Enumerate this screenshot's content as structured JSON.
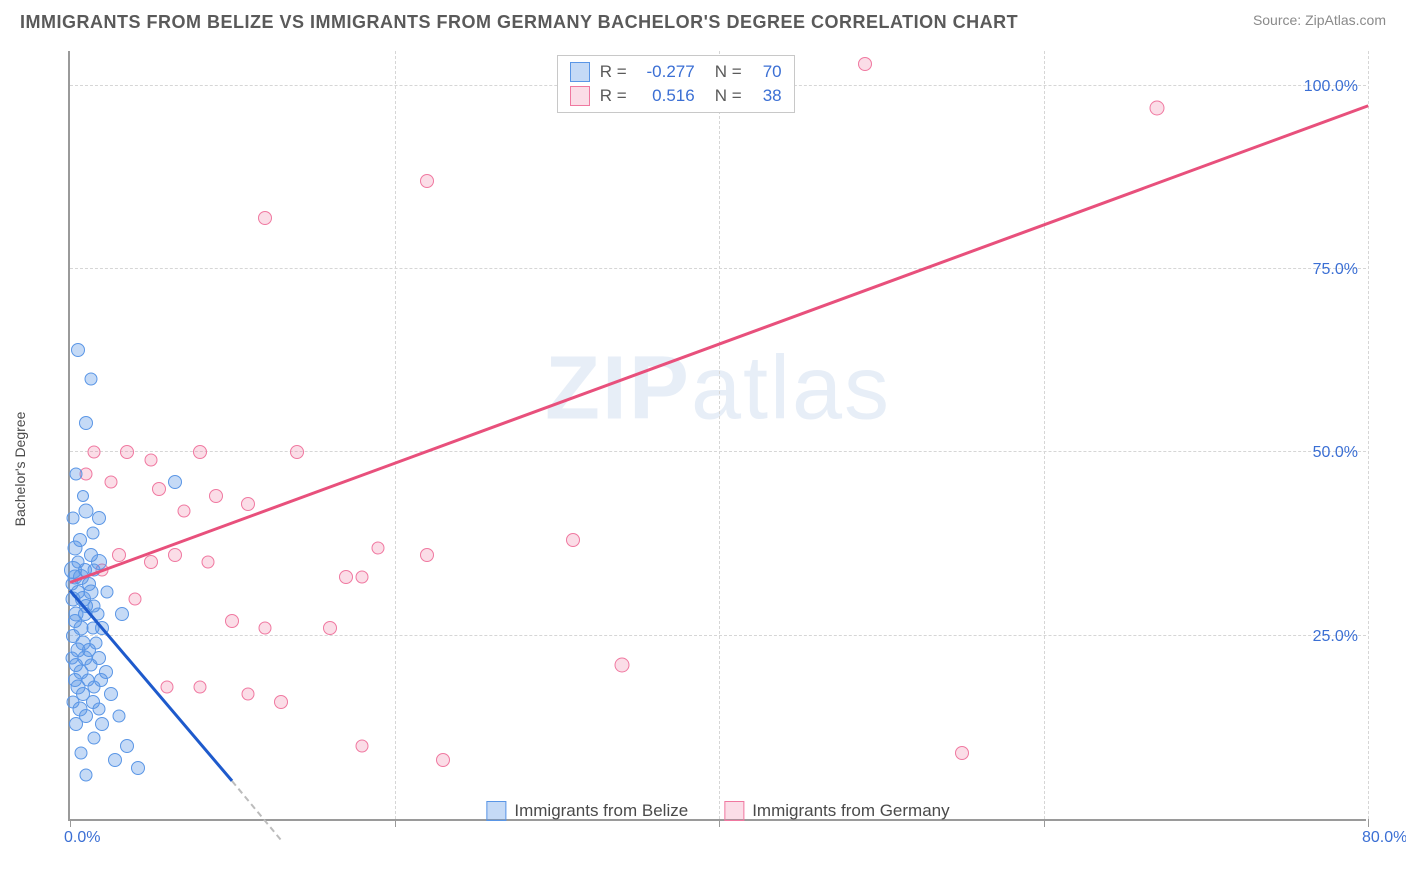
{
  "title": "IMMIGRANTS FROM BELIZE VS IMMIGRANTS FROM GERMANY BACHELOR'S DEGREE CORRELATION CHART",
  "source": "Source: ZipAtlas.com",
  "ylabel": "Bachelor's Degree",
  "watermark_a": "ZIP",
  "watermark_b": "atlas",
  "chart": {
    "type": "scatter",
    "xlim": [
      0,
      80
    ],
    "ylim": [
      0,
      105
    ],
    "xticks": [
      0,
      20,
      40,
      60,
      80
    ],
    "xticklabels": [
      "0.0%",
      "",
      "",
      "",
      "80.0%"
    ],
    "yticks": [
      25,
      50,
      75,
      100
    ],
    "yticklabels": [
      "25.0%",
      "50.0%",
      "75.0%",
      "100.0%"
    ],
    "grid_color": "#d6d6d6",
    "axis_color": "#9a9a9a",
    "text_color": "#3b6fd4",
    "background": "#ffffff",
    "marker_size_min": 10,
    "marker_size_max": 20
  },
  "legend_top": {
    "r_label": "R =",
    "n_label": "N =",
    "rows": [
      {
        "swatch": "b",
        "r": "-0.277",
        "n": "70"
      },
      {
        "swatch": "p",
        "r": "0.516",
        "n": "38"
      }
    ]
  },
  "legend_bottom": [
    {
      "swatch": "b",
      "label": "Immigrants from Belize"
    },
    {
      "swatch": "p",
      "label": "Immigrants from Germany"
    }
  ],
  "trend_lines": {
    "blue": {
      "x1": 0,
      "y1": 31,
      "x2": 10,
      "y2": 5,
      "color": "#1e5acc"
    },
    "blue_dash": {
      "x1": 10,
      "y1": 5,
      "x2": 13,
      "y2": -3
    },
    "pink": {
      "x1": 0,
      "y1": 32,
      "x2": 80,
      "y2": 97,
      "color": "#e8507c"
    }
  },
  "series": {
    "belize": {
      "color_fill": "rgba(90,150,230,0.35)",
      "color_stroke": "#5a96e6",
      "points": [
        {
          "x": 0.5,
          "y": 64,
          "s": 14
        },
        {
          "x": 1.3,
          "y": 60,
          "s": 13
        },
        {
          "x": 1.0,
          "y": 54,
          "s": 14
        },
        {
          "x": 0.4,
          "y": 47,
          "s": 13
        },
        {
          "x": 6.5,
          "y": 46,
          "s": 14
        },
        {
          "x": 0.8,
          "y": 44,
          "s": 12
        },
        {
          "x": 1.0,
          "y": 42,
          "s": 15
        },
        {
          "x": 0.2,
          "y": 41,
          "s": 13
        },
        {
          "x": 1.8,
          "y": 41,
          "s": 14
        },
        {
          "x": 1.4,
          "y": 39,
          "s": 13
        },
        {
          "x": 0.6,
          "y": 38,
          "s": 14
        },
        {
          "x": 0.3,
          "y": 37,
          "s": 15
        },
        {
          "x": 1.3,
          "y": 36,
          "s": 14
        },
        {
          "x": 0.5,
          "y": 35,
          "s": 13
        },
        {
          "x": 1.8,
          "y": 35,
          "s": 16
        },
        {
          "x": 0.2,
          "y": 34,
          "s": 18
        },
        {
          "x": 0.9,
          "y": 34,
          "s": 14
        },
        {
          "x": 1.5,
          "y": 34,
          "s": 13
        },
        {
          "x": 0.3,
          "y": 33,
          "s": 15
        },
        {
          "x": 0.7,
          "y": 33,
          "s": 16
        },
        {
          "x": 1.2,
          "y": 32,
          "s": 14
        },
        {
          "x": 0.1,
          "y": 32,
          "s": 13
        },
        {
          "x": 0.5,
          "y": 31,
          "s": 14
        },
        {
          "x": 1.3,
          "y": 31,
          "s": 15
        },
        {
          "x": 2.3,
          "y": 31,
          "s": 13
        },
        {
          "x": 0.8,
          "y": 30,
          "s": 16
        },
        {
          "x": 0.2,
          "y": 30,
          "s": 15
        },
        {
          "x": 1.0,
          "y": 29,
          "s": 14
        },
        {
          "x": 1.5,
          "y": 29,
          "s": 13
        },
        {
          "x": 0.4,
          "y": 28,
          "s": 15
        },
        {
          "x": 0.9,
          "y": 28,
          "s": 14
        },
        {
          "x": 1.7,
          "y": 28,
          "s": 13
        },
        {
          "x": 3.2,
          "y": 28,
          "s": 14
        },
        {
          "x": 0.3,
          "y": 27,
          "s": 14
        },
        {
          "x": 0.7,
          "y": 26,
          "s": 15
        },
        {
          "x": 1.4,
          "y": 26,
          "s": 13
        },
        {
          "x": 2.0,
          "y": 26,
          "s": 14
        },
        {
          "x": 0.2,
          "y": 25,
          "s": 14
        },
        {
          "x": 0.8,
          "y": 24,
          "s": 15
        },
        {
          "x": 1.6,
          "y": 24,
          "s": 13
        },
        {
          "x": 0.5,
          "y": 23,
          "s": 15
        },
        {
          "x": 1.2,
          "y": 23,
          "s": 14
        },
        {
          "x": 0.1,
          "y": 22,
          "s": 13
        },
        {
          "x": 0.9,
          "y": 22,
          "s": 15
        },
        {
          "x": 1.8,
          "y": 22,
          "s": 14
        },
        {
          "x": 0.4,
          "y": 21,
          "s": 14
        },
        {
          "x": 1.3,
          "y": 21,
          "s": 13
        },
        {
          "x": 0.7,
          "y": 20,
          "s": 15
        },
        {
          "x": 2.2,
          "y": 20,
          "s": 14
        },
        {
          "x": 0.3,
          "y": 19,
          "s": 14
        },
        {
          "x": 1.1,
          "y": 19,
          "s": 13
        },
        {
          "x": 1.9,
          "y": 19,
          "s": 14
        },
        {
          "x": 0.5,
          "y": 18,
          "s": 15
        },
        {
          "x": 1.5,
          "y": 18,
          "s": 13
        },
        {
          "x": 0.8,
          "y": 17,
          "s": 14
        },
        {
          "x": 2.5,
          "y": 17,
          "s": 14
        },
        {
          "x": 0.2,
          "y": 16,
          "s": 13
        },
        {
          "x": 1.4,
          "y": 16,
          "s": 14
        },
        {
          "x": 0.6,
          "y": 15,
          "s": 15
        },
        {
          "x": 1.8,
          "y": 15,
          "s": 13
        },
        {
          "x": 1.0,
          "y": 14,
          "s": 14
        },
        {
          "x": 3.0,
          "y": 14,
          "s": 13
        },
        {
          "x": 0.4,
          "y": 13,
          "s": 14
        },
        {
          "x": 2.0,
          "y": 13,
          "s": 14
        },
        {
          "x": 1.5,
          "y": 11,
          "s": 13
        },
        {
          "x": 3.5,
          "y": 10,
          "s": 14
        },
        {
          "x": 0.7,
          "y": 9,
          "s": 13
        },
        {
          "x": 2.8,
          "y": 8,
          "s": 14
        },
        {
          "x": 1.0,
          "y": 6,
          "s": 13
        },
        {
          "x": 4.2,
          "y": 7,
          "s": 14
        }
      ]
    },
    "germany": {
      "color_fill": "rgba(240,120,160,0.25)",
      "color_stroke": "#f078a0",
      "points": [
        {
          "x": 31,
          "y": 103,
          "s": 14
        },
        {
          "x": 49,
          "y": 103,
          "s": 14
        },
        {
          "x": 67,
          "y": 97,
          "s": 15
        },
        {
          "x": 22,
          "y": 87,
          "s": 14
        },
        {
          "x": 12,
          "y": 82,
          "s": 14
        },
        {
          "x": 1.5,
          "y": 50,
          "s": 13
        },
        {
          "x": 3.5,
          "y": 50,
          "s": 14
        },
        {
          "x": 5.0,
          "y": 49,
          "s": 13
        },
        {
          "x": 8.0,
          "y": 50,
          "s": 14
        },
        {
          "x": 14,
          "y": 50,
          "s": 14
        },
        {
          "x": 1.0,
          "y": 47,
          "s": 13
        },
        {
          "x": 2.5,
          "y": 46,
          "s": 13
        },
        {
          "x": 5.5,
          "y": 45,
          "s": 14
        },
        {
          "x": 9.0,
          "y": 44,
          "s": 14
        },
        {
          "x": 7.0,
          "y": 42,
          "s": 13
        },
        {
          "x": 11,
          "y": 43,
          "s": 14
        },
        {
          "x": 31,
          "y": 38,
          "s": 14
        },
        {
          "x": 19,
          "y": 37,
          "s": 13
        },
        {
          "x": 3.0,
          "y": 36,
          "s": 14
        },
        {
          "x": 6.5,
          "y": 36,
          "s": 14
        },
        {
          "x": 2.0,
          "y": 34,
          "s": 13
        },
        {
          "x": 5.0,
          "y": 35,
          "s": 14
        },
        {
          "x": 8.5,
          "y": 35,
          "s": 13
        },
        {
          "x": 22,
          "y": 36,
          "s": 14
        },
        {
          "x": 17,
          "y": 33,
          "s": 14
        },
        {
          "x": 18,
          "y": 33,
          "s": 13
        },
        {
          "x": 4.0,
          "y": 30,
          "s": 13
        },
        {
          "x": 10,
          "y": 27,
          "s": 14
        },
        {
          "x": 12,
          "y": 26,
          "s": 13
        },
        {
          "x": 16,
          "y": 26,
          "s": 14
        },
        {
          "x": 34,
          "y": 21,
          "s": 15
        },
        {
          "x": 6.0,
          "y": 18,
          "s": 13
        },
        {
          "x": 8.0,
          "y": 18,
          "s": 13
        },
        {
          "x": 11,
          "y": 17,
          "s": 13
        },
        {
          "x": 13,
          "y": 16,
          "s": 14
        },
        {
          "x": 23,
          "y": 8,
          "s": 14
        },
        {
          "x": 55,
          "y": 9,
          "s": 14
        },
        {
          "x": 18,
          "y": 10,
          "s": 13
        }
      ]
    }
  }
}
